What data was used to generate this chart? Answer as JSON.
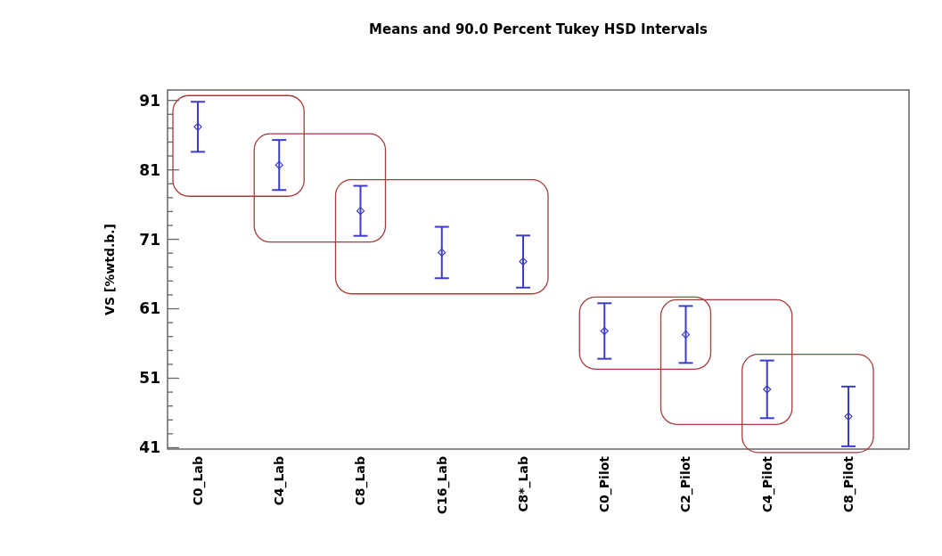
{
  "chart_data": {
    "type": "scatter",
    "title": "Means and 90.0 Percent Tukey HSD Intervals",
    "ylabel": "VS [%wtd.b.]",
    "categories": [
      "C0_Lab",
      "C4_Lab",
      "C8_Lab",
      "C16_Lab",
      "C8*_Lab",
      "C0_Pilot",
      "C2_Pilot",
      "C4_Pilot",
      "C8_Pilot"
    ],
    "series": [
      {
        "color": "#3c3cc8",
        "values": [
          87.2,
          81.7,
          75.1,
          69.1,
          67.8,
          57.8,
          57.3,
          49.4,
          45.5
        ],
        "errors": [
          3.6,
          3.6,
          3.6,
          3.7,
          3.75,
          4.0,
          4.1,
          4.15,
          4.3
        ]
      }
    ],
    "marker": "diamond",
    "ylim": [
      40.8,
      92.5
    ],
    "yticks": [
      41,
      {
        "value": 43,
        "label": null
      },
      {
        "value": 45,
        "label": null
      },
      {
        "value": 47,
        "label": null
      },
      {
        "value": 49,
        "label": null
      },
      51,
      {
        "value": 53,
        "label": null
      },
      {
        "value": 55,
        "label": null
      },
      {
        "value": 57,
        "label": null
      },
      {
        "value": 59,
        "label": null
      },
      61,
      {
        "value": 63,
        "label": null
      },
      {
        "value": 65,
        "label": null
      },
      {
        "value": 67,
        "label": null
      },
      {
        "value": 69,
        "label": null
      },
      71,
      {
        "value": 73,
        "label": null
      },
      {
        "value": 75,
        "label": null
      },
      {
        "value": 77,
        "label": null
      },
      {
        "value": 79,
        "label": null
      },
      81,
      {
        "value": 83,
        "label": null
      },
      {
        "value": 85,
        "label": null
      },
      {
        "value": 87,
        "label": null
      },
      {
        "value": 89,
        "label": null
      },
      91
    ]
  }
}
